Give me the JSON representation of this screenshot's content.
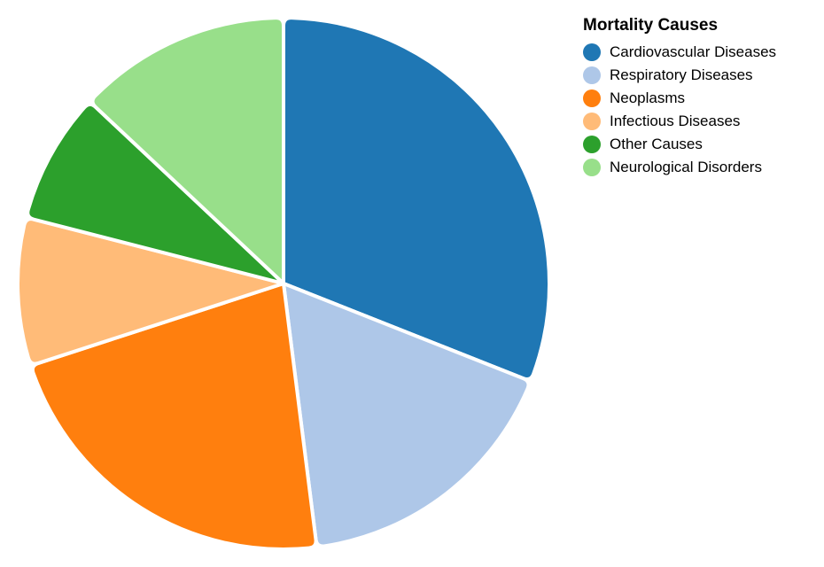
{
  "chart_data": {
    "type": "pie",
    "title": "",
    "legend_title": "Mortality Causes",
    "legend_position": "top-right",
    "slices": [
      {
        "name": "Cardiovascular Diseases",
        "value": 31,
        "color": "#1f77b4"
      },
      {
        "name": "Respiratory Diseases",
        "value": 17,
        "color": "#aec7e8"
      },
      {
        "name": "Neoplasms",
        "value": 22,
        "color": "#ff7f0e"
      },
      {
        "name": "Infectious Diseases",
        "value": 9,
        "color": "#ffbb78"
      },
      {
        "name": "Other Causes",
        "value": 8,
        "color": "#2ca02c"
      },
      {
        "name": "Neurological Disorders",
        "value": 13,
        "color": "#98df8a"
      }
    ]
  }
}
